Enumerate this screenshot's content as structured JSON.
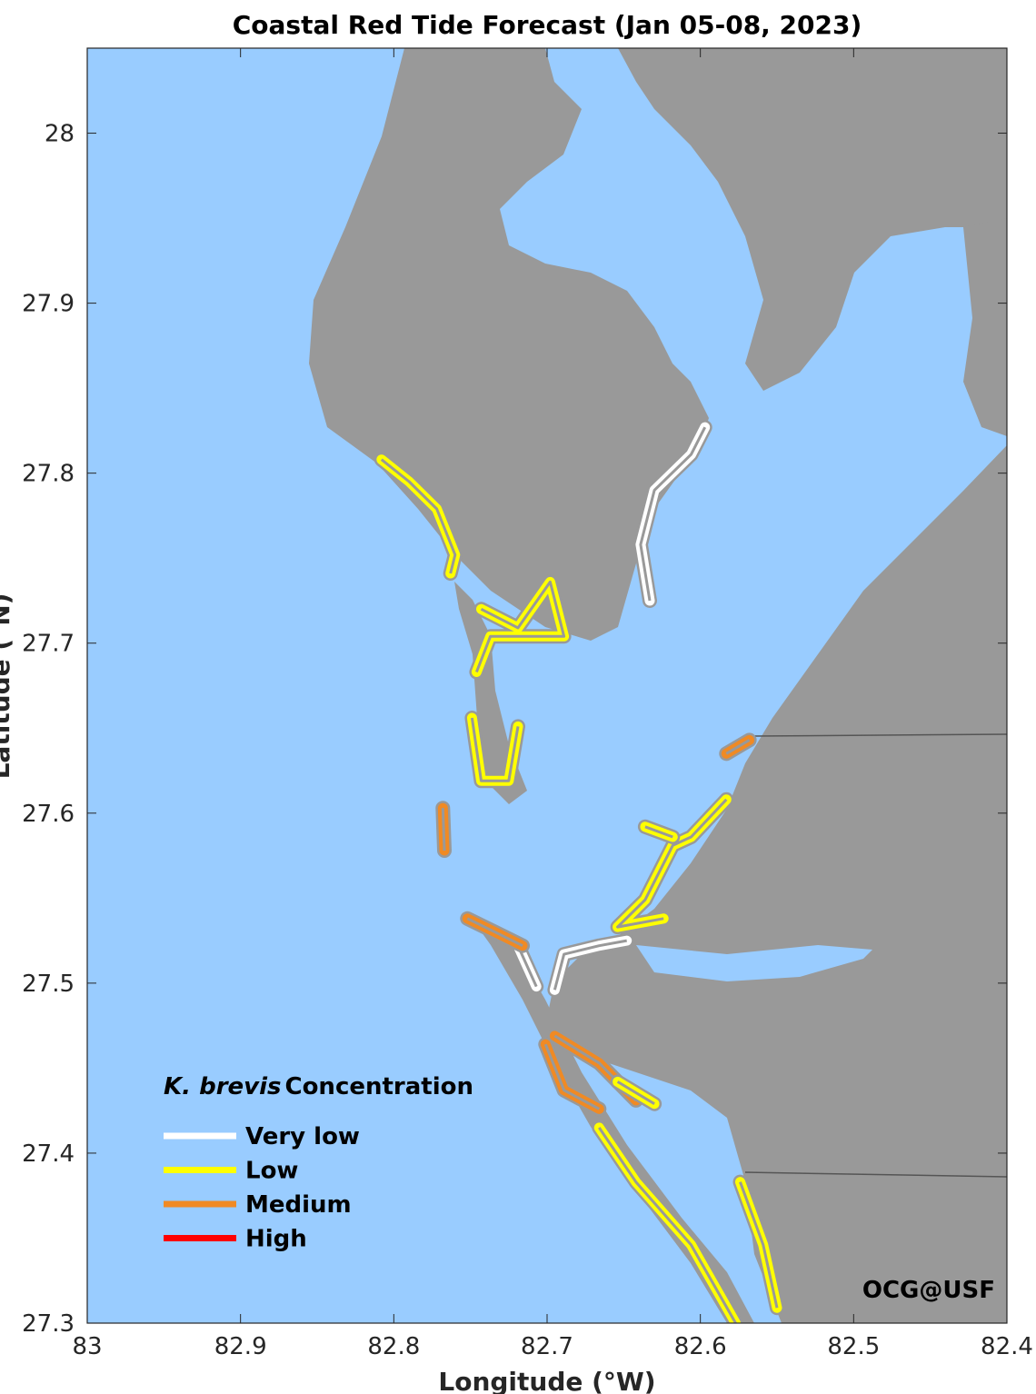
{
  "title": "Coastal Red Tide Forecast (Jan 05-08, 2023)",
  "xlabel": "Longitude (°W)",
  "ylabel": "Latitude (°N)",
  "credit": "OCG@USF",
  "colors": {
    "water": "#99ccff",
    "land": "#999999",
    "very_low": "#ffffff",
    "low": "#ffff00",
    "medium": "#f08a24",
    "high": "#ff0000"
  },
  "axes": {
    "xlim": [
      83,
      82.4
    ],
    "ylim": [
      27.3,
      28.05
    ],
    "xticks": [
      {
        "v": 83,
        "label": "83"
      },
      {
        "v": 82.9,
        "label": "82.9"
      },
      {
        "v": 82.8,
        "label": "82.8"
      },
      {
        "v": 82.7,
        "label": "82.7"
      },
      {
        "v": 82.6,
        "label": "82.6"
      },
      {
        "v": 82.5,
        "label": "82.5"
      },
      {
        "v": 82.4,
        "label": "82.4"
      }
    ],
    "yticks": [
      {
        "v": 27.3,
        "label": "27.3"
      },
      {
        "v": 27.4,
        "label": "27.4"
      },
      {
        "v": 27.5,
        "label": "27.5"
      },
      {
        "v": 27.6,
        "label": "27.6"
      },
      {
        "v": 27.7,
        "label": "27.7"
      },
      {
        "v": 27.8,
        "label": "27.8"
      },
      {
        "v": 27.9,
        "label": "27.9"
      },
      {
        "v": 28,
        "label": "28"
      }
    ]
  },
  "legend": {
    "title_italic": "K. brevis",
    "title_rest": "Concentration",
    "items": [
      {
        "label": "Very low",
        "level": "very_low"
      },
      {
        "label": "Low",
        "level": "low"
      },
      {
        "label": "Medium",
        "level": "medium"
      },
      {
        "label": "High",
        "level": "high"
      }
    ]
  },
  "segments": [
    {
      "level": "low",
      "pts": [
        [
          82.808,
          27.808
        ],
        [
          82.79,
          27.795
        ],
        [
          82.772,
          27.779
        ],
        [
          82.76,
          27.752
        ],
        [
          82.763,
          27.741
        ]
      ]
    },
    {
      "level": "very_low",
      "pts": [
        [
          82.597,
          27.827
        ],
        [
          82.606,
          27.811
        ],
        [
          82.63,
          27.79
        ],
        [
          82.639,
          27.758
        ],
        [
          82.633,
          27.725
        ]
      ]
    },
    {
      "level": "low",
      "pts": [
        [
          82.743,
          27.72
        ],
        [
          82.719,
          27.709
        ],
        [
          82.698,
          27.736
        ],
        [
          82.689,
          27.704
        ],
        [
          82.737,
          27.704
        ],
        [
          82.746,
          27.683
        ]
      ]
    },
    {
      "level": "low",
      "pts": [
        [
          82.749,
          27.656
        ],
        [
          82.743,
          27.619
        ],
        [
          82.725,
          27.619
        ],
        [
          82.719,
          27.651
        ]
      ]
    },
    {
      "level": "medium",
      "pts": [
        [
          82.768,
          27.603
        ],
        [
          82.767,
          27.578
        ]
      ]
    },
    {
      "level": "medium",
      "pts": [
        [
          82.583,
          27.635
        ],
        [
          82.568,
          27.643
        ]
      ]
    },
    {
      "level": "low",
      "pts": [
        [
          82.583,
          27.608
        ],
        [
          82.606,
          27.586
        ],
        [
          82.618,
          27.581
        ],
        [
          82.636,
          27.549
        ],
        [
          82.654,
          27.533
        ],
        [
          82.624,
          27.538
        ]
      ]
    },
    {
      "level": "low",
      "pts": [
        [
          82.636,
          27.592
        ],
        [
          82.618,
          27.586
        ]
      ]
    },
    {
      "level": "very_low",
      "pts": [
        [
          82.695,
          27.496
        ],
        [
          82.689,
          27.517
        ],
        [
          82.666,
          27.522
        ],
        [
          82.648,
          27.525
        ]
      ]
    },
    {
      "level": "very_low",
      "pts": [
        [
          82.719,
          27.522
        ],
        [
          82.707,
          27.498
        ]
      ]
    },
    {
      "level": "medium",
      "pts": [
        [
          82.752,
          27.538
        ],
        [
          82.734,
          27.53
        ],
        [
          82.716,
          27.522
        ]
      ]
    },
    {
      "level": "medium",
      "pts": [
        [
          82.701,
          27.464
        ],
        [
          82.689,
          27.437
        ],
        [
          82.666,
          27.426
        ]
      ]
    },
    {
      "level": "medium",
      "pts": [
        [
          82.695,
          27.469
        ],
        [
          82.666,
          27.453
        ],
        [
          82.642,
          27.431
        ]
      ]
    },
    {
      "level": "low",
      "pts": [
        [
          82.666,
          27.415
        ],
        [
          82.642,
          27.383
        ],
        [
          82.606,
          27.346
        ],
        [
          82.577,
          27.3
        ]
      ]
    },
    {
      "level": "low",
      "pts": [
        [
          82.574,
          27.383
        ],
        [
          82.559,
          27.346
        ],
        [
          82.55,
          27.309
        ]
      ]
    },
    {
      "level": "low",
      "pts": [
        [
          82.654,
          27.442
        ],
        [
          82.63,
          27.429
        ]
      ]
    }
  ]
}
